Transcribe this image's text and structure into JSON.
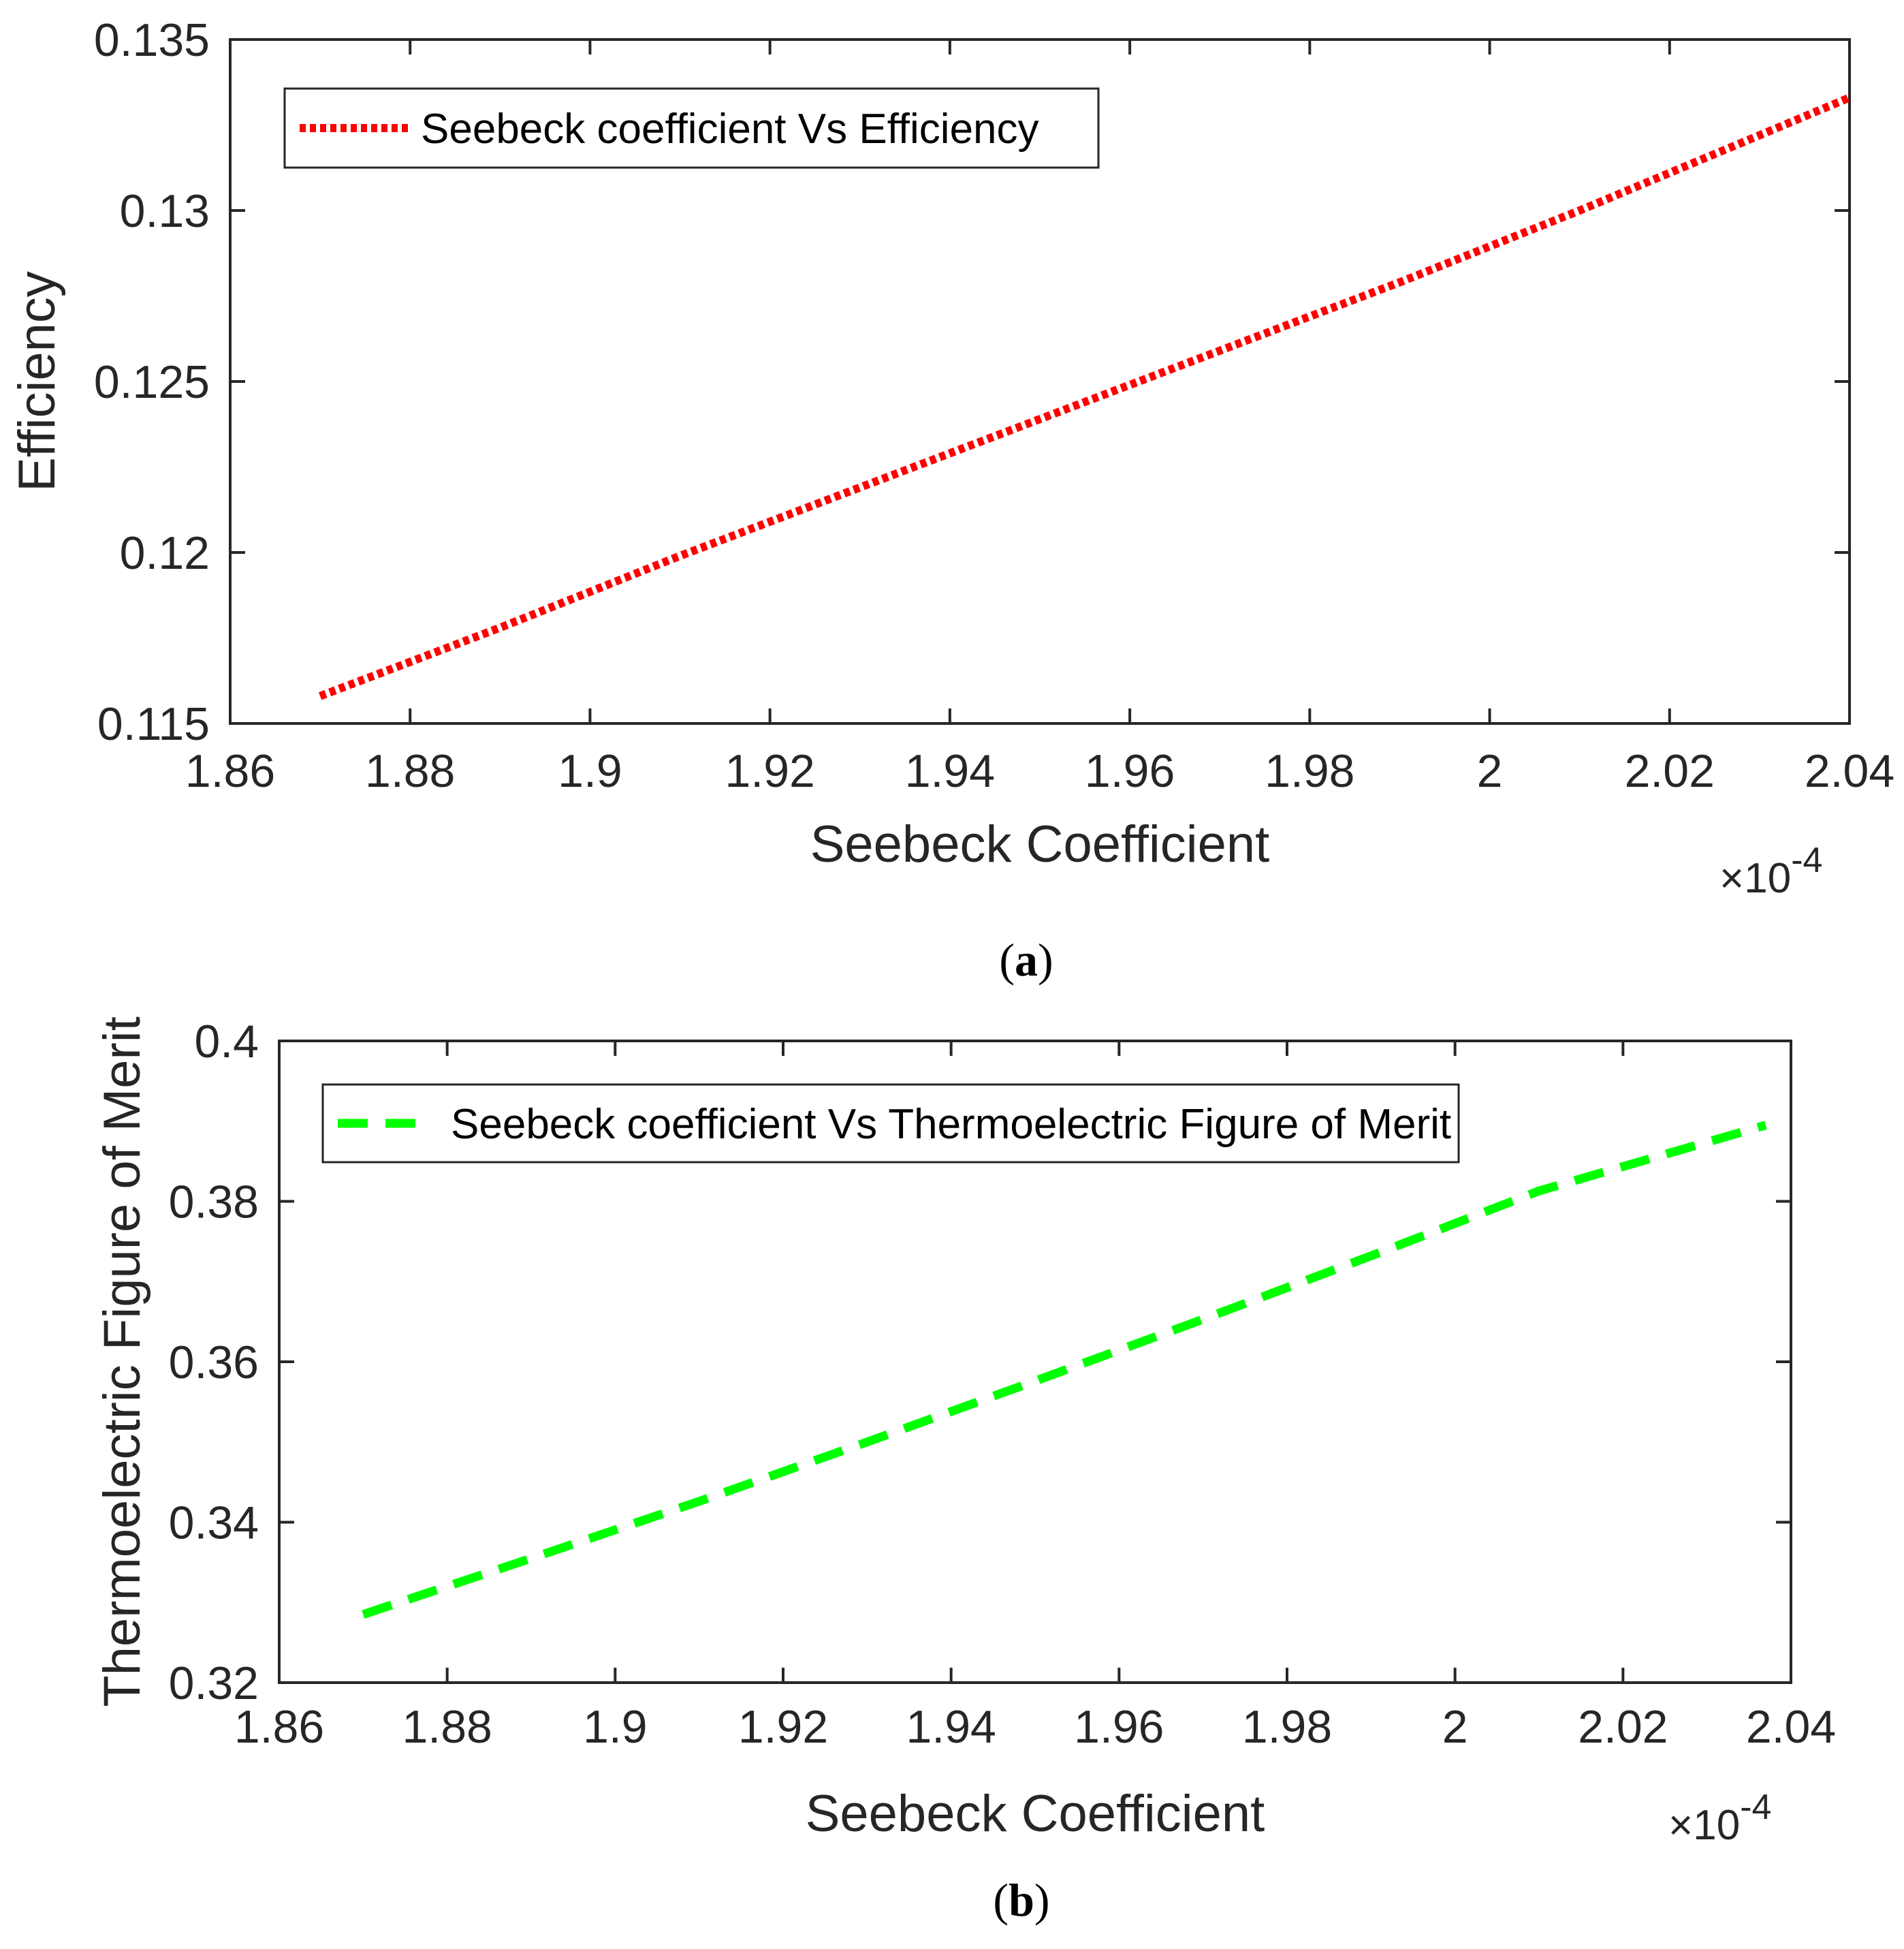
{
  "chart_data": [
    {
      "id": "a",
      "type": "line",
      "caption_letter": "a",
      "xlabel": "Seebeck Coefficient",
      "ylabel": "Efficiency",
      "x_multiplier": "10",
      "x_multiplier_exp": "-4",
      "xlim": [
        1.86,
        2.04
      ],
      "ylim": [
        0.115,
        0.135
      ],
      "xticks": [
        "1.86",
        "1.88",
        "1.9",
        "1.92",
        "1.94",
        "1.96",
        "1.98",
        "2",
        "2.02",
        "2.04"
      ],
      "yticks": [
        "0.115",
        "0.12",
        "0.125",
        "0.13",
        "0.135"
      ],
      "legend_position": "top-left",
      "grid": false,
      "series": [
        {
          "name": "Seebeck coefficient Vs Efficiency",
          "color": "#ff0000",
          "style": "dotted",
          "x": [
            1.87,
            1.89,
            1.91,
            1.93,
            1.95,
            1.97,
            1.99,
            2.01,
            2.04
          ],
          "y": [
            0.1158,
            0.1178,
            0.1199,
            0.1219,
            0.1239,
            0.1259,
            0.1279,
            0.13,
            0.1333
          ]
        }
      ]
    },
    {
      "id": "b",
      "type": "line",
      "caption_letter": "b",
      "xlabel": "Seebeck Coefficient",
      "ylabel": "Thermoelectric Figure of Merit",
      "x_multiplier": "10",
      "x_multiplier_exp": "-4",
      "xlim": [
        1.86,
        2.04
      ],
      "ylim": [
        0.32,
        0.4
      ],
      "xticks": [
        "1.86",
        "1.88",
        "1.9",
        "1.92",
        "1.94",
        "1.96",
        "1.98",
        "2",
        "2.02",
        "2.04"
      ],
      "yticks": [
        "0.32",
        "0.34",
        "0.36",
        "0.38",
        "0.4"
      ],
      "legend_position": "top-left",
      "grid": false,
      "series": [
        {
          "name": "Seebeck coefficient Vs Thermoelectric Figure of Merit",
          "color": "#00ff00",
          "style": "dashed",
          "x": [
            1.87,
            1.89,
            1.91,
            1.93,
            1.95,
            1.97,
            1.99,
            2.01,
            2.037
          ],
          "y": [
            0.3285,
            0.3355,
            0.3426,
            0.35,
            0.3576,
            0.3653,
            0.3732,
            0.3813,
            0.3895
          ]
        }
      ]
    }
  ]
}
